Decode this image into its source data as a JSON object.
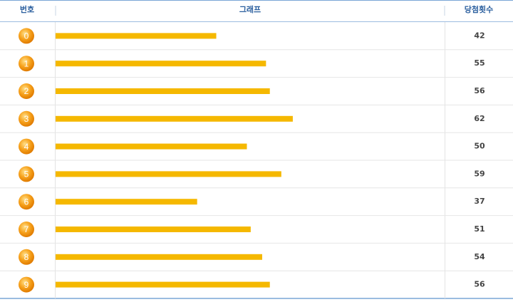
{
  "chart_data": {
    "type": "bar",
    "columns": [
      "번호",
      "그래프",
      "당첨횟수"
    ],
    "categories": [
      "0",
      "1",
      "2",
      "3",
      "4",
      "5",
      "6",
      "7",
      "8",
      "9"
    ],
    "values": [
      42,
      55,
      56,
      62,
      50,
      59,
      37,
      51,
      54,
      56
    ],
    "color": "#f5b800"
  }
}
